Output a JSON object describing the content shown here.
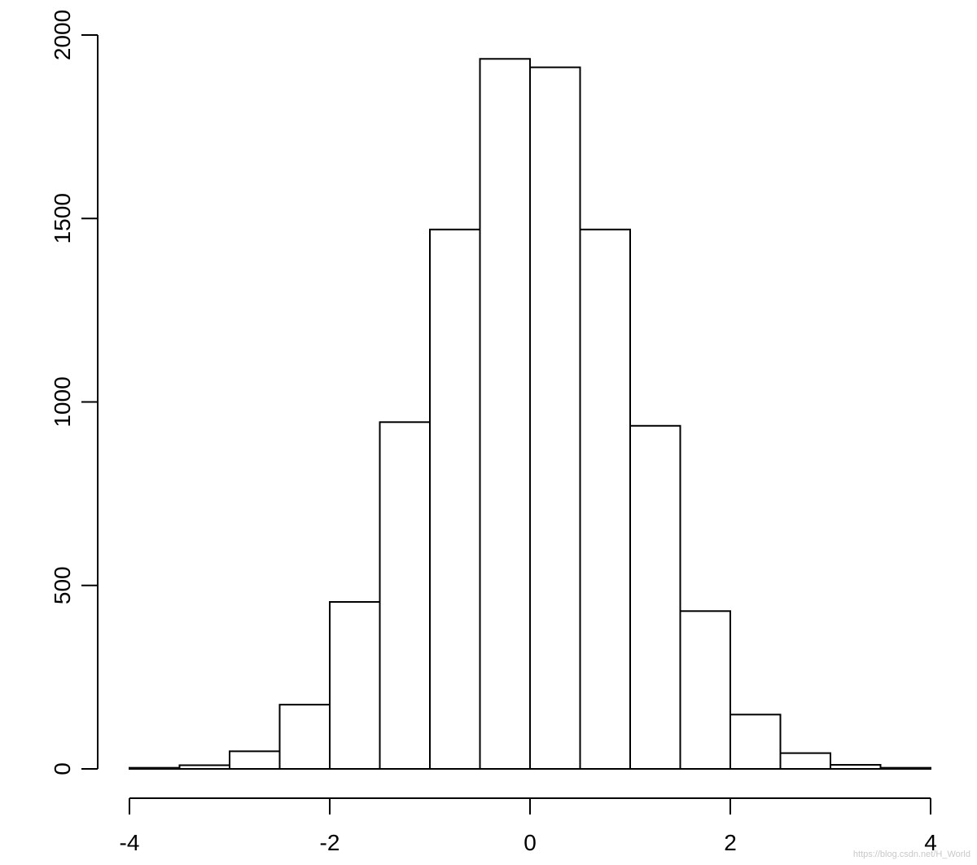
{
  "chart_data": {
    "type": "bar",
    "subtype": "histogram",
    "bin_edges": [
      -4,
      -3.5,
      -3,
      -2.5,
      -2,
      -1.5,
      -1,
      -0.5,
      0,
      0.5,
      1,
      1.5,
      2,
      2.5,
      3,
      3.5,
      4
    ],
    "values": [
      3,
      10,
      48,
      175,
      455,
      945,
      1470,
      1935,
      1912,
      1470,
      935,
      430,
      148,
      43,
      11,
      3
    ],
    "title": "",
    "xlabel": "",
    "ylabel": "",
    "xlim": [
      -4,
      4
    ],
    "ylim": [
      0,
      2000
    ],
    "x_ticks": [
      "-4",
      "-2",
      "0",
      "2",
      "4"
    ],
    "y_ticks": [
      "0",
      "500",
      "1000",
      "1500",
      "2000"
    ],
    "bar_fill": "#ffffff",
    "bar_stroke": "#000000",
    "grid": false,
    "legend": "none"
  },
  "watermark": "https://blog.csdn.net/H_World"
}
